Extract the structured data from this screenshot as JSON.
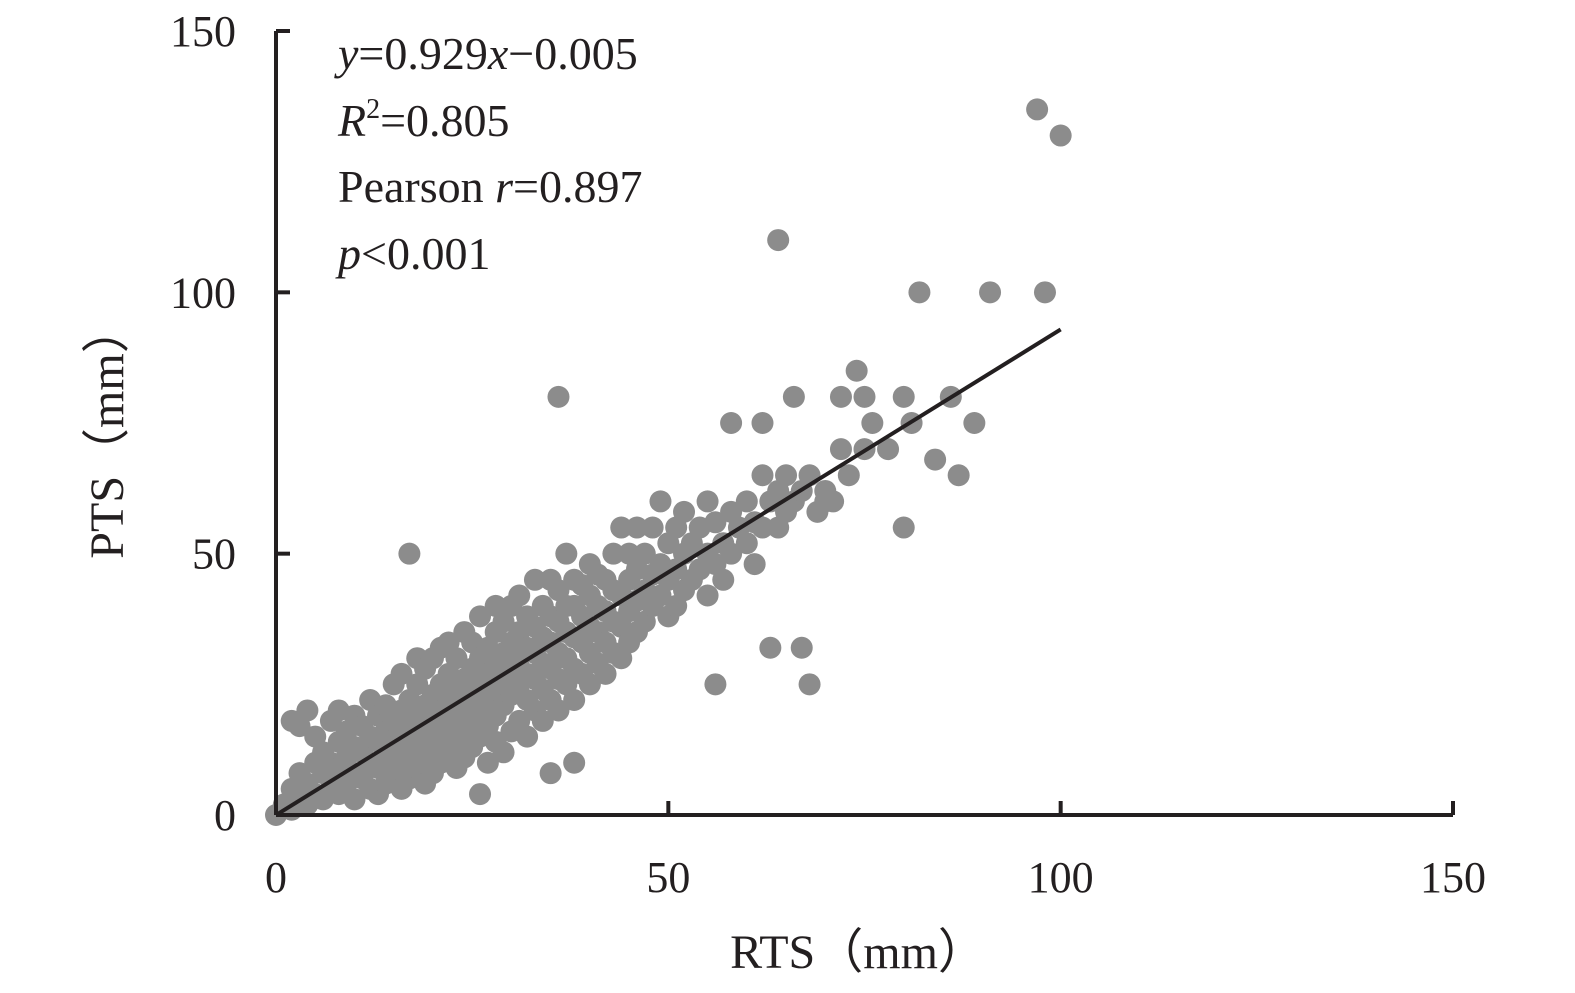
{
  "chart_data": {
    "type": "scatter",
    "xlabel": "RTS（mm）",
    "ylabel": "PTS（mm）",
    "xlim": [
      0,
      150
    ],
    "ylim": [
      0,
      150
    ],
    "x_ticks": [
      "0",
      "50",
      "100",
      "150"
    ],
    "y_ticks": [
      "0",
      "50",
      "100",
      "150"
    ],
    "grid": false,
    "point_color": "#8c8c8c",
    "line_color": "#231f20",
    "annotations": {
      "line1_var_y": "y",
      "line1_mid": "=0.929",
      "line1_var_x": "x",
      "line1_tail": "−0.005",
      "line2_var": "R",
      "line2_sup": "2",
      "line2_tail": "=0.805",
      "line3_prefix": "Pearson ",
      "line3_var": "r",
      "line3_tail": "=0.897",
      "line4_var": "p",
      "line4_tail": "<0.001"
    },
    "trendline": {
      "slope": 0.929,
      "intercept": -0.005,
      "x_range": [
        0,
        100
      ]
    },
    "series": [
      {
        "values": [
          [
            0,
            0
          ],
          [
            1,
            2
          ],
          [
            2,
            1
          ],
          [
            2,
            5
          ],
          [
            3,
            3
          ],
          [
            3,
            8
          ],
          [
            4,
            2
          ],
          [
            4,
            6
          ],
          [
            5,
            4
          ],
          [
            5,
            10
          ],
          [
            5,
            15
          ],
          [
            6,
            3
          ],
          [
            6,
            8
          ],
          [
            6,
            12
          ],
          [
            7,
            5
          ],
          [
            7,
            10
          ],
          [
            7,
            18
          ],
          [
            8,
            4
          ],
          [
            8,
            9
          ],
          [
            8,
            14
          ],
          [
            8,
            20
          ],
          [
            9,
            6
          ],
          [
            9,
            11
          ],
          [
            9,
            16
          ],
          [
            10,
            3
          ],
          [
            10,
            8
          ],
          [
            10,
            13
          ],
          [
            10,
            19
          ],
          [
            11,
            7
          ],
          [
            11,
            12
          ],
          [
            11,
            17
          ],
          [
            12,
            5
          ],
          [
            12,
            10
          ],
          [
            12,
            15
          ],
          [
            12,
            22
          ],
          [
            13,
            4
          ],
          [
            13,
            9
          ],
          [
            13,
            14
          ],
          [
            13,
            19
          ],
          [
            14,
            6
          ],
          [
            14,
            11
          ],
          [
            14,
            16
          ],
          [
            14,
            21
          ],
          [
            15,
            8
          ],
          [
            15,
            13
          ],
          [
            15,
            18
          ],
          [
            15,
            25
          ],
          [
            16,
            5
          ],
          [
            16,
            10
          ],
          [
            16,
            15
          ],
          [
            16,
            20
          ],
          [
            16,
            27
          ],
          [
            17,
            7
          ],
          [
            17,
            12
          ],
          [
            17,
            17
          ],
          [
            17,
            22
          ],
          [
            18,
            9
          ],
          [
            18,
            14
          ],
          [
            18,
            19
          ],
          [
            18,
            25
          ],
          [
            18,
            30
          ],
          [
            19,
            6
          ],
          [
            19,
            11
          ],
          [
            19,
            16
          ],
          [
            19,
            21
          ],
          [
            19,
            28
          ],
          [
            20,
            8
          ],
          [
            20,
            13
          ],
          [
            20,
            18
          ],
          [
            20,
            23
          ],
          [
            20,
            30
          ],
          [
            21,
            10
          ],
          [
            21,
            15
          ],
          [
            21,
            20
          ],
          [
            21,
            25
          ],
          [
            21,
            32
          ],
          [
            22,
            12
          ],
          [
            22,
            17
          ],
          [
            22,
            22
          ],
          [
            22,
            27
          ],
          [
            22,
            33
          ],
          [
            23,
            9
          ],
          [
            23,
            14
          ],
          [
            23,
            19
          ],
          [
            23,
            24
          ],
          [
            23,
            30
          ],
          [
            24,
            11
          ],
          [
            24,
            16
          ],
          [
            24,
            21
          ],
          [
            24,
            26
          ],
          [
            24,
            35
          ],
          [
            25,
            13
          ],
          [
            25,
            18
          ],
          [
            25,
            23
          ],
          [
            25,
            28
          ],
          [
            25,
            33
          ],
          [
            26,
            15
          ],
          [
            26,
            20
          ],
          [
            26,
            25
          ],
          [
            26,
            30
          ],
          [
            26,
            38
          ],
          [
            27,
            10
          ],
          [
            27,
            17
          ],
          [
            27,
            22
          ],
          [
            27,
            27
          ],
          [
            27,
            32
          ],
          [
            28,
            14
          ],
          [
            28,
            19
          ],
          [
            28,
            24
          ],
          [
            28,
            29
          ],
          [
            28,
            35
          ],
          [
            28,
            40
          ],
          [
            29,
            12
          ],
          [
            29,
            21
          ],
          [
            29,
            26
          ],
          [
            29,
            31
          ],
          [
            29,
            37
          ],
          [
            30,
            16
          ],
          [
            30,
            23
          ],
          [
            30,
            28
          ],
          [
            30,
            33
          ],
          [
            30,
            40
          ],
          [
            31,
            18
          ],
          [
            31,
            25
          ],
          [
            31,
            30
          ],
          [
            31,
            35
          ],
          [
            31,
            42
          ],
          [
            32,
            15
          ],
          [
            32,
            22
          ],
          [
            32,
            27
          ],
          [
            32,
            32
          ],
          [
            32,
            38
          ],
          [
            33,
            20
          ],
          [
            33,
            26
          ],
          [
            33,
            31
          ],
          [
            33,
            36
          ],
          [
            33,
            45
          ],
          [
            34,
            18
          ],
          [
            34,
            24
          ],
          [
            34,
            29
          ],
          [
            34,
            34
          ],
          [
            34,
            40
          ],
          [
            35,
            22
          ],
          [
            35,
            28
          ],
          [
            35,
            33
          ],
          [
            35,
            38
          ],
          [
            35,
            45
          ],
          [
            36,
            20
          ],
          [
            36,
            26
          ],
          [
            36,
            31
          ],
          [
            36,
            37
          ],
          [
            36,
            43
          ],
          [
            37,
            25
          ],
          [
            37,
            30
          ],
          [
            37,
            35
          ],
          [
            37,
            40
          ],
          [
            37,
            50
          ],
          [
            38,
            22
          ],
          [
            38,
            28
          ],
          [
            38,
            34
          ],
          [
            38,
            40
          ],
          [
            38,
            45
          ],
          [
            39,
            27
          ],
          [
            39,
            33
          ],
          [
            39,
            38
          ],
          [
            39,
            44
          ],
          [
            40,
            25
          ],
          [
            40,
            31
          ],
          [
            40,
            36
          ],
          [
            40,
            42
          ],
          [
            40,
            48
          ],
          [
            41,
            29
          ],
          [
            41,
            35
          ],
          [
            41,
            40
          ],
          [
            41,
            46
          ],
          [
            42,
            27
          ],
          [
            42,
            33
          ],
          [
            42,
            39
          ],
          [
            42,
            45
          ],
          [
            43,
            31
          ],
          [
            43,
            37
          ],
          [
            43,
            43
          ],
          [
            43,
            50
          ],
          [
            44,
            30
          ],
          [
            44,
            36
          ],
          [
            44,
            42
          ],
          [
            44,
            55
          ],
          [
            45,
            33
          ],
          [
            45,
            39
          ],
          [
            45,
            45
          ],
          [
            45,
            50
          ],
          [
            46,
            35
          ],
          [
            46,
            41
          ],
          [
            46,
            47
          ],
          [
            46,
            55
          ],
          [
            47,
            37
          ],
          [
            47,
            43
          ],
          [
            47,
            50
          ],
          [
            48,
            40
          ],
          [
            48,
            46
          ],
          [
            48,
            55
          ],
          [
            49,
            42
          ],
          [
            49,
            48
          ],
          [
            49,
            60
          ],
          [
            50,
            38
          ],
          [
            50,
            45
          ],
          [
            50,
            52
          ],
          [
            51,
            40
          ],
          [
            51,
            47
          ],
          [
            51,
            55
          ],
          [
            52,
            43
          ],
          [
            52,
            50
          ],
          [
            52,
            58
          ],
          [
            53,
            45
          ],
          [
            53,
            52
          ],
          [
            54,
            47
          ],
          [
            54,
            55
          ],
          [
            55,
            42
          ],
          [
            55,
            50
          ],
          [
            55,
            60
          ],
          [
            56,
            48
          ],
          [
            56,
            56
          ],
          [
            57,
            45
          ],
          [
            57,
            52
          ],
          [
            58,
            50
          ],
          [
            58,
            58
          ],
          [
            59,
            55
          ],
          [
            60,
            52
          ],
          [
            60,
            60
          ],
          [
            61,
            48
          ],
          [
            61,
            56
          ],
          [
            62,
            55
          ],
          [
            62,
            65
          ],
          [
            63,
            60
          ],
          [
            64,
            55
          ],
          [
            64,
            62
          ],
          [
            65,
            58
          ],
          [
            65,
            65
          ],
          [
            66,
            60
          ],
          [
            67,
            62
          ],
          [
            68,
            65
          ],
          [
            69,
            58
          ],
          [
            70,
            62
          ],
          [
            71,
            60
          ],
          [
            72,
            70
          ],
          [
            73,
            65
          ],
          [
            74,
            85
          ],
          [
            75,
            80
          ],
          [
            76,
            75
          ],
          [
            78,
            70
          ],
          [
            80,
            55
          ],
          [
            80,
            80
          ],
          [
            81,
            75
          ],
          [
            82,
            100
          ],
          [
            84,
            68
          ],
          [
            86,
            80
          ],
          [
            87,
            65
          ],
          [
            89,
            75
          ],
          [
            91,
            100
          ],
          [
            97,
            135
          ],
          [
            98,
            100
          ],
          [
            100,
            130
          ],
          [
            64,
            110
          ],
          [
            36,
            80
          ],
          [
            35,
            8
          ],
          [
            38,
            10
          ],
          [
            26,
            4
          ],
          [
            17,
            50
          ],
          [
            63,
            32
          ],
          [
            67,
            32
          ],
          [
            56,
            25
          ],
          [
            68,
            25
          ],
          [
            58,
            75
          ],
          [
            62,
            75
          ],
          [
            66,
            80
          ],
          [
            72,
            80
          ],
          [
            75,
            70
          ],
          [
            70,
            60
          ],
          [
            3,
            17
          ],
          [
            2,
            18
          ],
          [
            4,
            20
          ]
        ]
      }
    ]
  }
}
